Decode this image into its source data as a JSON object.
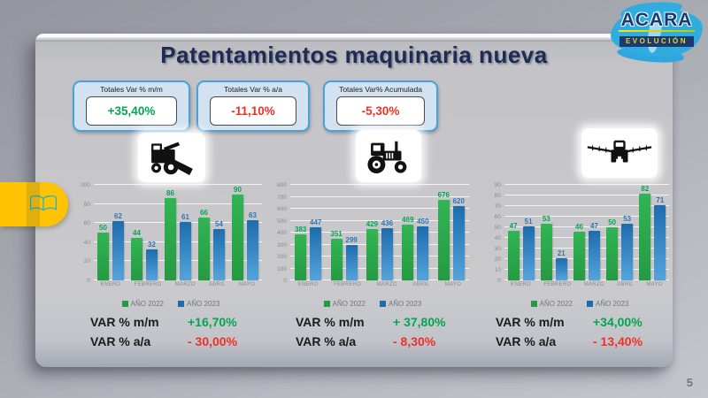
{
  "title": "Patentamientos maquinaria nueva",
  "page_number": "5",
  "logo": {
    "brand": "ACARA",
    "tagline": "EVOLUCIÓN"
  },
  "summary_boxes": [
    {
      "label": "Totales Var % m/m",
      "value": "+35,40%",
      "color": "#00A651"
    },
    {
      "label": "Totales Var % a/a",
      "value": "-11,10%",
      "color": "#EE3124"
    },
    {
      "label": "Totales Var% Acumulada",
      "value": "-5,30%",
      "color": "#EE3124"
    }
  ],
  "icons": [
    "combine-harvester",
    "tractor",
    "sprayer"
  ],
  "colors": {
    "bar_green_top": "#31b553",
    "bar_green_bottom": "#259a43",
    "bar_blue_top": "#1d6cae",
    "bar_blue_bottom": "#54a4dc",
    "label_green": "#00A651",
    "label_blue": "#2E75B6",
    "positive": "#00A651",
    "negative": "#EE3124",
    "accent_box_border": "#47a2d9",
    "accent_box_bg": "#d2e2f0",
    "title_navy": "#1d2c54",
    "tab_yellow": "#ffc303",
    "logo_blue": "#31ace1"
  },
  "chart_data": [
    {
      "type": "bar",
      "machine": "cosechadoras",
      "categories": [
        "ENERO",
        "FEBRERO",
        "MARZO",
        "ABRIL",
        "MAYO"
      ],
      "series": [
        {
          "name": "AÑO 2022",
          "values": [
            50,
            44,
            86,
            66,
            90
          ]
        },
        {
          "name": "AÑO 2023",
          "values": [
            62,
            32,
            61,
            54,
            63
          ]
        }
      ],
      "ylim": [
        0,
        100
      ],
      "ytick": 20,
      "grid": true,
      "legend_position": "bottom",
      "var_mm_label": "VAR % m/m",
      "var_mm": "+16,70%",
      "var_aa_label": "VAR %  a/a",
      "var_aa": "- 30,00%"
    },
    {
      "type": "bar",
      "machine": "tractores",
      "categories": [
        "ENERO",
        "FEBRERO",
        "MARZO",
        "ABRIL",
        "MAYO"
      ],
      "series": [
        {
          "name": "AÑO 2022",
          "values": [
            383,
            351,
            429,
            469,
            676
          ]
        },
        {
          "name": "AÑO 2023",
          "values": [
            447,
            299,
            436,
            450,
            620
          ]
        }
      ],
      "ylim": [
        0,
        800
      ],
      "ytick": 100,
      "grid": true,
      "legend_position": "bottom",
      "var_mm_label": "VAR % m/m",
      "var_mm": "+ 37,80%",
      "var_aa_label": "VAR %  a/a",
      "var_aa": "-  8,30%"
    },
    {
      "type": "bar",
      "machine": "pulverizadoras",
      "categories": [
        "ENERO",
        "FEBRERO",
        "MARZO",
        "ABRIL",
        "MAYO"
      ],
      "series": [
        {
          "name": "AÑO 2022",
          "values": [
            47,
            53,
            46,
            50,
            82
          ]
        },
        {
          "name": "AÑO 2023",
          "values": [
            51,
            21,
            47,
            53,
            71
          ]
        }
      ],
      "ylim": [
        0,
        90
      ],
      "ytick": 10,
      "grid": true,
      "legend_position": "bottom",
      "var_mm_label": "VAR % m/m",
      "var_mm": "+34,00%",
      "var_aa_label": "VAR %  a/a",
      "var_aa": "- 13,40%"
    }
  ]
}
